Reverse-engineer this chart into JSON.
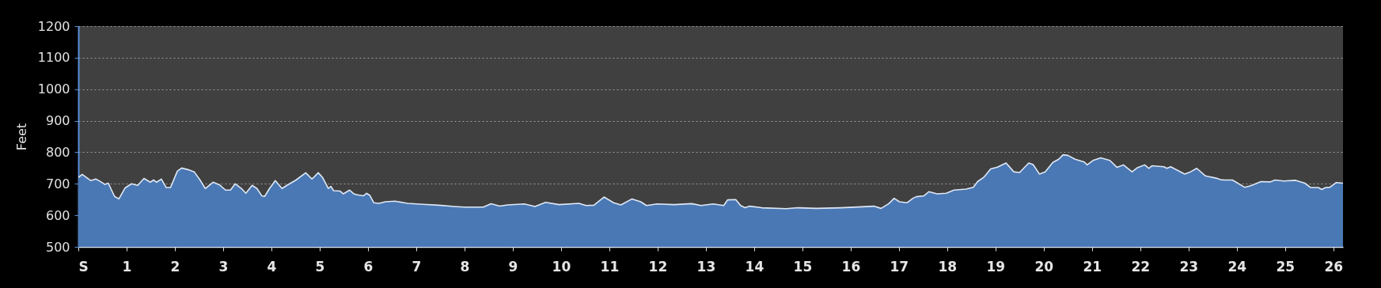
{
  "chart_data": {
    "type": "area",
    "ylabel": "Feet",
    "x": [
      0,
      0.08,
      0.26,
      0.36,
      0.45,
      0.55,
      0.62,
      0.75,
      0.84,
      0.97,
      1.1,
      1.23,
      1.36,
      1.49,
      1.56,
      1.62,
      1.72,
      1.82,
      1.91,
      2.05,
      2.14,
      2.27,
      2.4,
      2.53,
      2.63,
      2.79,
      2.92,
      3.05,
      3.15,
      3.25,
      3.38,
      3.47,
      3.6,
      3.7,
      3.8,
      3.86,
      3.96,
      4.08,
      4.22,
      4.32,
      4.51,
      4.71,
      4.84,
      4.97,
      5.06,
      5.18,
      5.23,
      5.29,
      5.42,
      5.49,
      5.62,
      5.71,
      5.78,
      5.91,
      5.97,
      6.04,
      6.12,
      6.23,
      6.36,
      6.56,
      6.82,
      7.14,
      7.47,
      7.79,
      8.0,
      8.39,
      8.55,
      8.73,
      8.89,
      9.24,
      9.46,
      9.68,
      9.96,
      10.37,
      10.52,
      10.68,
      10.89,
      11.09,
      11.24,
      11.47,
      11.65,
      11.77,
      11.99,
      12.34,
      12.71,
      12.9,
      13.15,
      13.37,
      13.45,
      13.62,
      13.72,
      13.81,
      13.91,
      14.16,
      14.66,
      14.91,
      15.29,
      15.79,
      16.23,
      16.48,
      16.63,
      16.79,
      16.9,
      17.01,
      17.17,
      17.29,
      17.36,
      17.52,
      17.62,
      17.79,
      17.98,
      18.14,
      18.39,
      18.54,
      18.63,
      18.76,
      18.9,
      19.04,
      19.22,
      19.38,
      19.5,
      19.69,
      19.78,
      19.91,
      20.03,
      20.19,
      20.31,
      20.4,
      20.5,
      20.65,
      20.84,
      20.9,
      21.02,
      21.18,
      21.37,
      21.52,
      21.65,
      21.83,
      21.93,
      22.09,
      22.18,
      22.24,
      22.49,
      22.55,
      22.63,
      22.92,
      23.04,
      23.17,
      23.35,
      23.57,
      23.66,
      23.76,
      23.91,
      24.16,
      24.29,
      24.5,
      24.69,
      24.79,
      24.97,
      25.22,
      25.41,
      25.53,
      25.69,
      25.76,
      25.84,
      25.93,
      26.06,
      26.2
    ],
    "series": [
      {
        "color": "#4a78b4",
        "values": [
          720,
          730,
          710,
          715,
          708,
          698,
          702,
          660,
          652,
          687,
          700,
          695,
          717,
          705,
          712,
          705,
          715,
          688,
          688,
          740,
          750,
          745,
          738,
          710,
          685,
          705,
          697,
          680,
          680,
          700,
          685,
          670,
          695,
          685,
          662,
          660,
          685,
          710,
          685,
          695,
          712,
          735,
          715,
          735,
          720,
          685,
          692,
          678,
          677,
          668,
          680,
          668,
          665,
          662,
          670,
          663,
          640,
          638,
          643,
          645,
          638,
          635,
          632,
          628,
          626,
          626,
          637,
          629,
          633,
          636,
          628,
          641,
          634,
          638,
          631,
          632,
          658,
          640,
          633,
          652,
          643,
          631,
          636,
          634,
          637,
          631,
          636,
          631,
          649,
          650,
          631,
          624,
          629,
          624,
          621,
          624,
          622,
          624,
          627,
          629,
          622,
          637,
          654,
          643,
          640,
          654,
          659,
          662,
          675,
          668,
          670,
          680,
          683,
          689,
          707,
          721,
          747,
          753,
          766,
          738,
          736,
          766,
          761,
          731,
          738,
          768,
          778,
          792,
          790,
          778,
          769,
          760,
          774,
          782,
          774,
          752,
          760,
          738,
          750,
          760,
          749,
          757,
          754,
          749,
          754,
          731,
          738,
          749,
          725,
          718,
          713,
          712,
          712,
          689,
          694,
          707,
          706,
          712,
          709,
          711,
          702,
          688,
          688,
          682,
          688,
          689,
          704,
          702
        ]
      }
    ],
    "xlim": [
      0,
      26.2
    ],
    "xticks": [
      {
        "value": 0,
        "label": "S"
      },
      1,
      2,
      3,
      4,
      5,
      6,
      7,
      8,
      9,
      10,
      11,
      12,
      13,
      14,
      15,
      16,
      17,
      18,
      19,
      20,
      21,
      22,
      23,
      24,
      25,
      26
    ],
    "ylim": [
      500,
      1200
    ],
    "yticks": [
      500,
      600,
      700,
      800,
      900,
      1000,
      1100,
      1200
    ],
    "grid": "y"
  }
}
